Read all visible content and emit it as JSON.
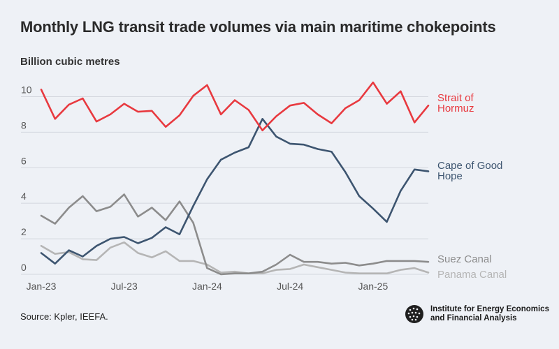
{
  "title": "Monthly LNG transit trade volumes via main maritime chokepoints",
  "unit_label": "Billion cubic metres",
  "source": "Source: Kpler, IEEFA.",
  "logo": {
    "line1": "Institute for Energy Economics",
    "line2": "and Financial Analysis"
  },
  "chart_data": {
    "type": "line",
    "title": "Monthly LNG transit trade volumes via main maritime chokepoints",
    "ylabel": "Billion cubic metres",
    "xlabel": "",
    "ylim": [
      0,
      11
    ],
    "yticks": [
      "0",
      "2",
      "4",
      "6",
      "8",
      "10"
    ],
    "grid": true,
    "x": [
      "Jan-23",
      "Feb-23",
      "Mar-23",
      "Apr-23",
      "May-23",
      "Jun-23",
      "Jul-23",
      "Aug-23",
      "Sep-23",
      "Oct-23",
      "Nov-23",
      "Dec-23",
      "Jan-24",
      "Feb-24",
      "Mar-24",
      "Apr-24",
      "May-24",
      "Jun-24",
      "Jul-24",
      "Aug-24",
      "Sep-24",
      "Oct-24",
      "Nov-24",
      "Dec-24",
      "Jan-25",
      "Feb-25",
      "Mar-25",
      "Apr-25",
      "May-25"
    ],
    "xticks": [
      "Jan-23",
      "Jul-23",
      "Jan-24",
      "Jul-24",
      "Jan-25"
    ],
    "series": [
      {
        "name": "Strait of Hormuz",
        "label_lines": [
          "Strait of",
          "Hormuz"
        ],
        "color": "#e8393f",
        "values": [
          10.4,
          8.75,
          9.55,
          9.9,
          8.6,
          9.0,
          9.6,
          9.15,
          9.2,
          8.3,
          8.95,
          10.05,
          10.65,
          9.0,
          9.8,
          9.25,
          8.1,
          8.9,
          9.5,
          9.65,
          9.0,
          8.5,
          9.35,
          9.8,
          10.8,
          9.6,
          10.3,
          8.55,
          9.5
        ]
      },
      {
        "name": "Cape of Good Hope",
        "label_lines": [
          "Cape of Good",
          "Hope"
        ],
        "color": "#3d5570",
        "values": [
          1.2,
          0.6,
          1.35,
          1.0,
          1.6,
          2.0,
          2.1,
          1.75,
          2.05,
          2.65,
          2.25,
          3.85,
          5.35,
          6.45,
          6.85,
          7.15,
          8.75,
          7.75,
          7.35,
          7.3,
          7.05,
          6.9,
          5.75,
          4.4,
          3.7,
          2.95,
          4.7,
          5.9,
          5.8
        ]
      },
      {
        "name": "Suez Canal",
        "label_lines": [
          "Suez Canal"
        ],
        "color": "#8c8c8c",
        "values": [
          3.3,
          2.85,
          3.75,
          4.4,
          3.55,
          3.8,
          4.5,
          3.25,
          3.75,
          3.05,
          4.1,
          2.9,
          0.35,
          0.0,
          0.05,
          0.05,
          0.15,
          0.55,
          1.1,
          0.7,
          0.7,
          0.6,
          0.65,
          0.5,
          0.6,
          0.75,
          0.75,
          0.75,
          0.7
        ]
      },
      {
        "name": "Panama Canal",
        "label_lines": [
          "Panama Canal"
        ],
        "color": "#b5b5b5",
        "values": [
          1.6,
          1.15,
          1.25,
          0.85,
          0.8,
          1.5,
          1.8,
          1.2,
          0.95,
          1.3,
          0.75,
          0.75,
          0.55,
          0.1,
          0.15,
          0.05,
          0.05,
          0.25,
          0.3,
          0.55,
          0.4,
          0.25,
          0.1,
          0.05,
          0.05,
          0.05,
          0.25,
          0.35,
          0.1
        ]
      }
    ]
  }
}
